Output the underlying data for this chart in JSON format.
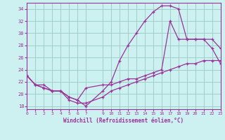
{
  "xlabel": "Windchill (Refroidissement éolien,°C)",
  "background_color": "#cdf0f0",
  "grid_color": "#a0d0c8",
  "line_color": "#993399",
  "x_ticks": [
    0,
    1,
    2,
    3,
    4,
    5,
    6,
    7,
    9,
    10,
    11,
    12,
    13,
    14,
    15,
    16,
    17,
    18,
    19,
    20,
    21,
    22,
    23
  ],
  "x_tick_positions": [
    0,
    1,
    2,
    3,
    4,
    5,
    6,
    7,
    9,
    10,
    11,
    12,
    13,
    14,
    15,
    16,
    17,
    18,
    19,
    20,
    21,
    22,
    23
  ],
  "y_ticks": [
    18,
    20,
    22,
    24,
    26,
    28,
    30,
    32,
    34
  ],
  "xlim": [
    0,
    23
  ],
  "ylim": [
    17.5,
    35.0
  ],
  "curve1_x": [
    0,
    1,
    2,
    3,
    4,
    5,
    6,
    7,
    9,
    10,
    11,
    12,
    13,
    14,
    15,
    16,
    17,
    18,
    19,
    20,
    21,
    22,
    23
  ],
  "curve1_y": [
    23.0,
    21.5,
    21.5,
    20.5,
    20.5,
    19.0,
    18.5,
    18.5,
    19.5,
    20.5,
    21.0,
    21.5,
    22.0,
    22.5,
    23.0,
    23.5,
    24.0,
    24.5,
    25.0,
    25.0,
    25.5,
    25.5,
    25.5
  ],
  "curve2_x": [
    0,
    1,
    2,
    3,
    4,
    5,
    6,
    7,
    9,
    10,
    11,
    12,
    13,
    14,
    15,
    16,
    17,
    18,
    19,
    20,
    21,
    22,
    23
  ],
  "curve2_y": [
    23.0,
    21.5,
    21.0,
    20.5,
    20.5,
    19.5,
    19.0,
    18.0,
    20.5,
    22.0,
    25.5,
    28.0,
    30.0,
    32.0,
    33.5,
    34.5,
    34.5,
    34.0,
    29.0,
    29.0,
    29.0,
    27.5,
    25.0
  ],
  "curve3_x": [
    0,
    1,
    2,
    3,
    4,
    5,
    6,
    7,
    9,
    10,
    11,
    12,
    13,
    14,
    15,
    16,
    17,
    18,
    19,
    20,
    21,
    22,
    23
  ],
  "curve3_y": [
    23.0,
    21.5,
    21.0,
    20.5,
    20.5,
    19.5,
    19.0,
    21.0,
    21.5,
    21.5,
    22.0,
    22.5,
    22.5,
    23.0,
    23.5,
    24.0,
    32.0,
    29.0,
    29.0,
    29.0,
    29.0,
    29.0,
    27.5
  ]
}
